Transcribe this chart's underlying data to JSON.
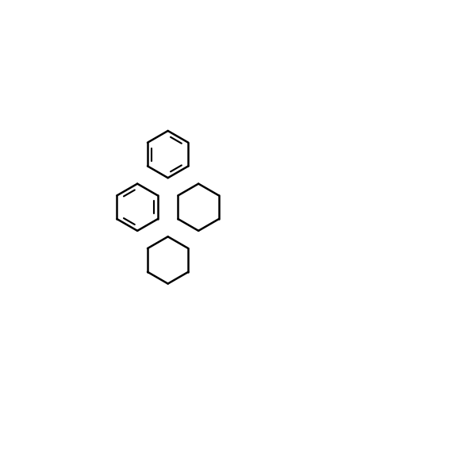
{
  "background_color": "#ffffff",
  "bond_color": "#000000",
  "N_color": "#0000ff",
  "O_color": "#ff0000",
  "bond_width": 1.8,
  "font_size": 9,
  "figsize": [
    6.0,
    6.0
  ],
  "dpi": 100
}
